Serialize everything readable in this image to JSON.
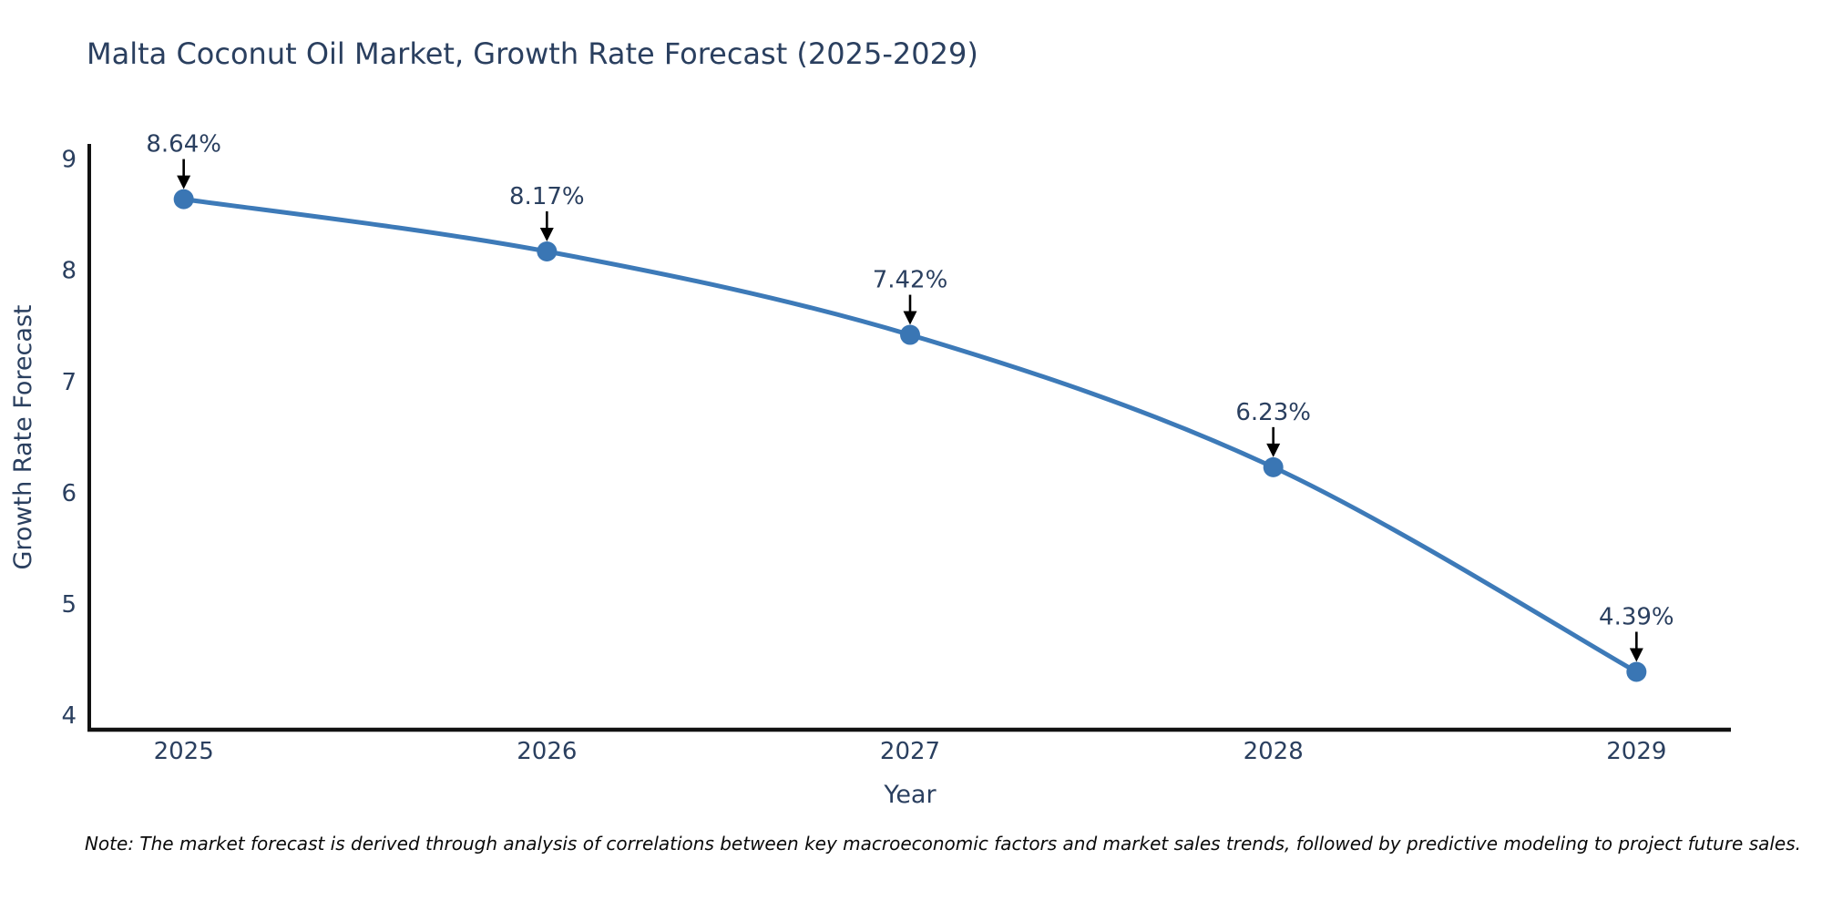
{
  "title": "Malta Coconut Oil Market, Growth Rate Forecast (2025-2029)",
  "note": "Note: The market forecast is derived through analysis of correlations between key macroeconomic factors and market sales trends, followed by predictive modeling to project future sales.",
  "chart_data": {
    "type": "line",
    "title": "Malta Coconut Oil Market, Growth Rate Forecast (2025-2029)",
    "x": [
      2025,
      2026,
      2027,
      2028,
      2029
    ],
    "values": [
      8.64,
      8.17,
      7.42,
      6.23,
      4.39
    ],
    "point_labels": [
      "8.64%",
      "8.17%",
      "7.42%",
      "6.23%",
      "4.39%"
    ],
    "xlabel": "Year",
    "ylabel": "Growth Rate Forecast",
    "xticks": [
      2025,
      2026,
      2027,
      2028,
      2029
    ],
    "yticks": [
      4,
      5,
      6,
      7,
      8,
      9
    ],
    "xlim": [
      2024.74,
      2029.26
    ],
    "ylim": [
      3.87,
      9.12
    ],
    "grid": false,
    "legend": "none",
    "line_shape": "spline",
    "colors": {
      "line": "#3d7ab8",
      "marker": "#3a76b4",
      "axis": "#111111",
      "tick_text": "#2a3f5f",
      "annotation_text": "#2a3f5f",
      "arrow": "#000000",
      "background": "#ffffff"
    }
  }
}
